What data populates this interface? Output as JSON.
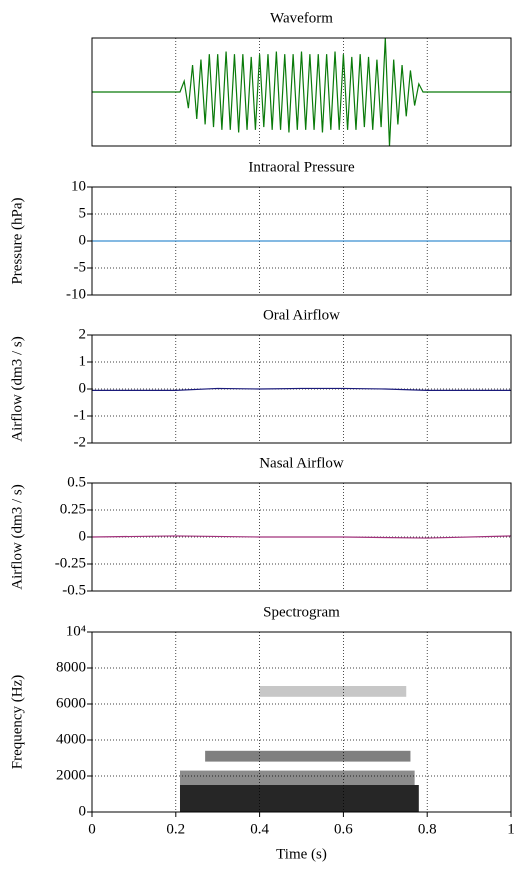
{
  "chart_data": [
    {
      "type": "line",
      "title": "Waveform",
      "color": "#0a7a0a",
      "xlim": [
        0,
        1
      ],
      "ylim": [
        -1,
        1
      ],
      "x": [
        0,
        0.21,
        0.22,
        0.23,
        0.24,
        0.25,
        0.26,
        0.27,
        0.28,
        0.29,
        0.3,
        0.31,
        0.32,
        0.33,
        0.34,
        0.35,
        0.36,
        0.37,
        0.38,
        0.39,
        0.4,
        0.41,
        0.42,
        0.43,
        0.44,
        0.45,
        0.46,
        0.47,
        0.48,
        0.49,
        0.5,
        0.51,
        0.52,
        0.53,
        0.54,
        0.55,
        0.56,
        0.57,
        0.58,
        0.59,
        0.6,
        0.61,
        0.62,
        0.63,
        0.64,
        0.65,
        0.66,
        0.67,
        0.68,
        0.69,
        0.7,
        0.71,
        0.72,
        0.73,
        0.74,
        0.75,
        0.76,
        0.77,
        0.78,
        0.79,
        1
      ],
      "values": [
        0,
        0,
        0.2,
        -0.3,
        0.5,
        -0.5,
        0.6,
        -0.6,
        0.7,
        -0.65,
        0.7,
        -0.7,
        0.75,
        -0.7,
        0.7,
        -0.75,
        0.7,
        -0.7,
        0.65,
        -0.7,
        0.7,
        -0.65,
        0.7,
        -0.7,
        0.75,
        -0.7,
        0.7,
        -0.75,
        0.7,
        -0.7,
        0.75,
        -0.7,
        0.7,
        -0.7,
        0.7,
        -0.75,
        0.7,
        -0.7,
        0.75,
        -0.7,
        0.7,
        -0.7,
        0.65,
        -0.7,
        0.7,
        -0.65,
        0.65,
        -0.7,
        0.6,
        -0.65,
        1,
        -1,
        0.6,
        -0.6,
        0.5,
        -0.45,
        0.4,
        -0.25,
        0.15,
        0,
        0
      ]
    },
    {
      "type": "line",
      "title": "Intraoral Pressure",
      "ylabel": "Pressure (hPa)",
      "color": "#3a8fd0",
      "xlim": [
        0,
        1
      ],
      "ylim": [
        -10,
        10
      ],
      "yticks": [
        -10,
        -5,
        0,
        5,
        10
      ],
      "grid": true,
      "x": [
        0,
        1
      ],
      "values": [
        0,
        0
      ]
    },
    {
      "type": "line",
      "title": "Oral Airflow",
      "ylabel": "Airflow (dm3 / s)",
      "color": "#1a1a7a",
      "xlim": [
        0,
        1
      ],
      "ylim": [
        -2,
        2
      ],
      "yticks": [
        -2,
        -1,
        0,
        1,
        2
      ],
      "grid": true,
      "x": [
        0,
        0.1,
        0.2,
        0.3,
        0.4,
        0.5,
        0.6,
        0.7,
        0.8,
        0.9,
        1
      ],
      "values": [
        -0.05,
        -0.05,
        -0.05,
        0.02,
        0,
        0.02,
        0.02,
        0,
        -0.05,
        -0.05,
        -0.05
      ]
    },
    {
      "type": "line",
      "title": "Nasal Airflow",
      "ylabel": "Airflow (dm3 / s)",
      "color": "#a0307a",
      "xlim": [
        0,
        1
      ],
      "ylim": [
        -0.5,
        0.5
      ],
      "yticks": [
        -0.5,
        -0.25,
        0,
        0.25,
        0.5
      ],
      "grid": true,
      "x": [
        0,
        0.2,
        0.4,
        0.6,
        0.8,
        1
      ],
      "values": [
        0,
        0.01,
        0,
        0,
        -0.01,
        0.01
      ]
    },
    {
      "type": "spectrogram",
      "title": "Spectrogram",
      "xlabel": "Time (s)",
      "ylabel": "Frequency (Hz)",
      "xlim": [
        0,
        1
      ],
      "ylim": [
        0,
        10000
      ],
      "xticks": [
        0,
        0.2,
        0.4,
        0.6,
        0.8,
        1
      ],
      "yticks": [
        0,
        2000,
        4000,
        6000,
        8000,
        {
          "value": 10000,
          "label": "10⁴"
        }
      ],
      "grid": true,
      "regions": [
        {
          "time": [
            0.21,
            0.78
          ],
          "frequency": [
            0,
            1500
          ],
          "intensity": 0.85
        },
        {
          "time": [
            0.21,
            0.77
          ],
          "frequency": [
            1500,
            2300
          ],
          "intensity": 0.45
        },
        {
          "time": [
            0.27,
            0.76
          ],
          "frequency": [
            2800,
            3400
          ],
          "intensity": 0.5
        },
        {
          "time": [
            0.4,
            0.75
          ],
          "frequency": [
            6400,
            7000
          ],
          "intensity": 0.22
        }
      ]
    }
  ]
}
